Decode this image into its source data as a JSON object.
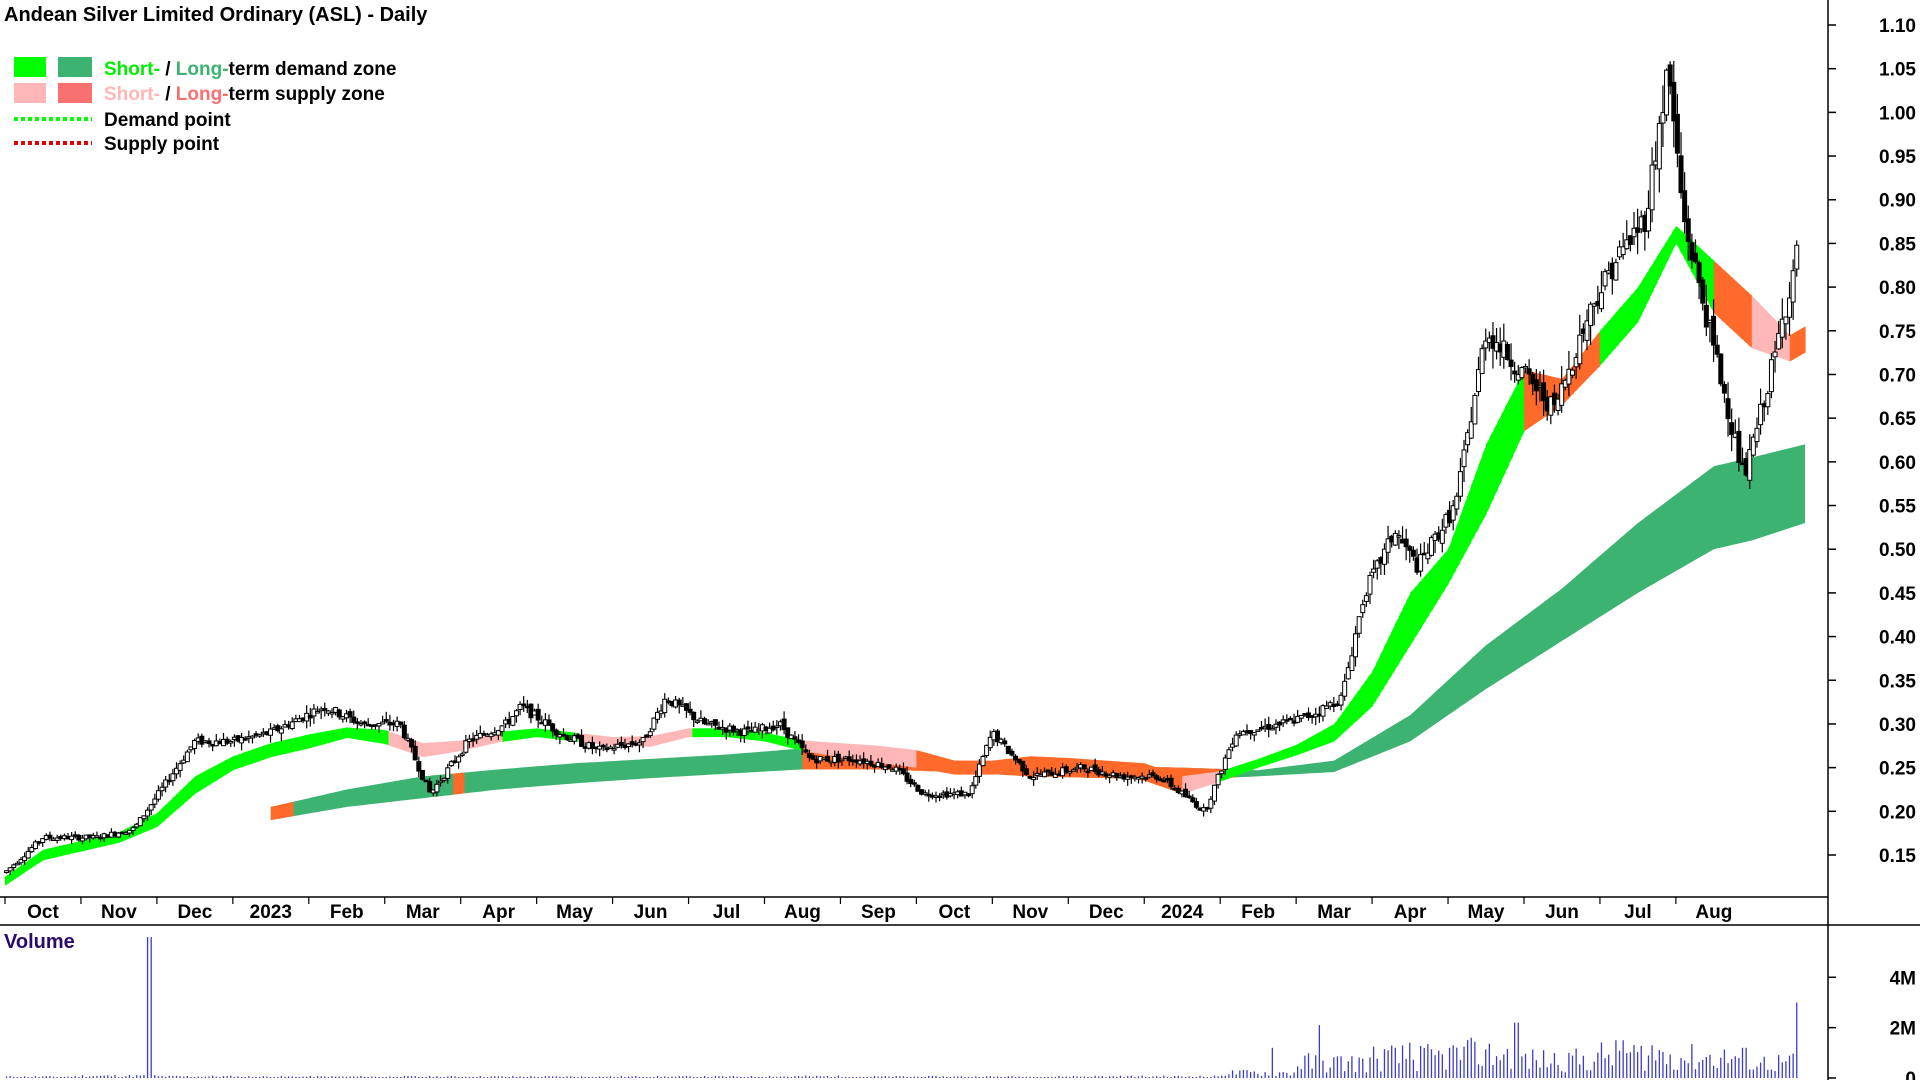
{
  "chart_data": [
    {
      "type": "candlestick",
      "title": "Andean Silver Limited Ordinary (ASL) - Daily",
      "legend": {
        "placement": "top-left",
        "demand_zone": {
          "short": "Short-",
          "sep": " / ",
          "long": "Long-",
          "rest": "term demand zone"
        },
        "supply_zone": {
          "short": "Short-",
          "sep": " / ",
          "long": "Long-",
          "rest": "term supply zone"
        },
        "demand_point": "Demand point",
        "supply_point": "Supply point"
      },
      "colors": {
        "short_demand": "#00ff00",
        "long_demand": "#3cb371",
        "short_supply": "#ffb6b6",
        "long_supply": "#f87070",
        "zone_overlap": "#ff6a2a",
        "demand_point": "#00ff00",
        "supply_point": "#e00000",
        "volume": "#3c3cc8",
        "candle": "#000000"
      },
      "x_labels": [
        "Oct",
        "Nov",
        "Dec",
        "2023",
        "Feb",
        "Mar",
        "Apr",
        "May",
        "Jun",
        "Jul",
        "Aug",
        "Sep",
        "Oct",
        "Nov",
        "Dec",
        "2024",
        "Feb",
        "Mar",
        "Apr",
        "May",
        "Jun",
        "Jul",
        "Aug"
      ],
      "x_label_month_pos": [
        0.5,
        1.5,
        2.5,
        3.5,
        4.5,
        5.5,
        6.5,
        7.5,
        8.5,
        9.5,
        10.5,
        11.5,
        12.5,
        13.5,
        14.5,
        15.5,
        16.5,
        17.5,
        18.5,
        19.5,
        20.5,
        21.5,
        22.5
      ],
      "x_range_months": [
        0,
        23.7
      ],
      "y_axis": {
        "scale": "linear",
        "ylim": [
          0.1,
          1.125
        ],
        "side": "right",
        "ticks": [
          "1.10",
          "1.05",
          "1.00",
          "0.95",
          "0.90",
          "0.85",
          "0.80",
          "0.75",
          "0.70",
          "0.65",
          "0.60",
          "0.55",
          "0.50",
          "0.45",
          "0.40",
          "0.35",
          "0.30",
          "0.25",
          "0.20",
          "0.15"
        ]
      },
      "price_path": [
        [
          0,
          0.13
        ],
        [
          0.5,
          0.17
        ],
        [
          1.2,
          0.17
        ],
        [
          1.7,
          0.18
        ],
        [
          2.1,
          0.23
        ],
        [
          2.5,
          0.28
        ],
        [
          3,
          0.28
        ],
        [
          3.5,
          0.29
        ],
        [
          4.2,
          0.32
        ],
        [
          4.7,
          0.3
        ],
        [
          5.2,
          0.3
        ],
        [
          5.6,
          0.22
        ],
        [
          6.1,
          0.28
        ],
        [
          6.6,
          0.3
        ],
        [
          6.8,
          0.32
        ],
        [
          7.3,
          0.29
        ],
        [
          7.8,
          0.27
        ],
        [
          8.4,
          0.28
        ],
        [
          8.7,
          0.33
        ],
        [
          9.2,
          0.3
        ],
        [
          9.8,
          0.29
        ],
        [
          10.2,
          0.3
        ],
        [
          10.6,
          0.26
        ],
        [
          11.2,
          0.26
        ],
        [
          11.7,
          0.25
        ],
        [
          12.1,
          0.22
        ],
        [
          12.7,
          0.22
        ],
        [
          13,
          0.29
        ],
        [
          13.5,
          0.24
        ],
        [
          14.2,
          0.25
        ],
        [
          14.7,
          0.24
        ],
        [
          15.2,
          0.24
        ],
        [
          15.8,
          0.2
        ],
        [
          16.2,
          0.29
        ],
        [
          16.8,
          0.3
        ],
        [
          17.2,
          0.31
        ],
        [
          17.6,
          0.33
        ],
        [
          17.9,
          0.45
        ],
        [
          18.3,
          0.52
        ],
        [
          18.6,
          0.48
        ],
        [
          19.1,
          0.55
        ],
        [
          19.5,
          0.75
        ],
        [
          20,
          0.7
        ],
        [
          20.4,
          0.66
        ],
        [
          20.9,
          0.78
        ],
        [
          21.2,
          0.83
        ],
        [
          21.6,
          0.88
        ],
        [
          21.9,
          1.05
        ],
        [
          22.1,
          0.88
        ],
        [
          22.5,
          0.73
        ],
        [
          22.9,
          0.58
        ],
        [
          23.3,
          0.72
        ],
        [
          23.6,
          0.84
        ]
      ],
      "short_term_zone": {
        "months": [
          0,
          0.5,
          1,
          1.5,
          2,
          2.5,
          3,
          3.5,
          4,
          4.5,
          5,
          5.5,
          6,
          6.5,
          7,
          7.5,
          8,
          8.5,
          9,
          9.5,
          10,
          10.5,
          11,
          11.5,
          12,
          12.5,
          13,
          13.5,
          14,
          14.5,
          15,
          15.5,
          16,
          16.5,
          17,
          17.5,
          18,
          18.5,
          19,
          19.5,
          20,
          20.5,
          21,
          21.5,
          22,
          22.5,
          23,
          23.5,
          23.7
        ],
        "center": [
          0.12,
          0.15,
          0.16,
          0.17,
          0.19,
          0.23,
          0.255,
          0.27,
          0.28,
          0.29,
          0.285,
          0.27,
          0.275,
          0.285,
          0.29,
          0.285,
          0.28,
          0.28,
          0.29,
          0.29,
          0.285,
          0.275,
          0.27,
          0.265,
          0.26,
          0.25,
          0.25,
          0.255,
          0.255,
          0.25,
          0.245,
          0.23,
          0.24,
          0.255,
          0.27,
          0.29,
          0.34,
          0.42,
          0.48,
          0.58,
          0.67,
          0.68,
          0.73,
          0.78,
          0.86,
          0.8,
          0.76,
          0.73,
          0.74
        ],
        "half_width": [
          0.005,
          0.006,
          0.006,
          0.006,
          0.008,
          0.01,
          0.008,
          0.008,
          0.008,
          0.006,
          0.008,
          0.008,
          0.006,
          0.006,
          0.005,
          0.005,
          0.005,
          0.006,
          0.005,
          0.005,
          0.005,
          0.006,
          0.008,
          0.01,
          0.01,
          0.008,
          0.008,
          0.008,
          0.006,
          0.008,
          0.01,
          0.01,
          0.006,
          0.005,
          0.006,
          0.01,
          0.02,
          0.03,
          0.02,
          0.04,
          0.035,
          0.015,
          0.02,
          0.02,
          0.01,
          0.03,
          0.03,
          0.015,
          0.015
        ],
        "state": [
          "d",
          "d",
          "d",
          "d",
          "d",
          "d",
          "d",
          "d",
          "d",
          "d",
          "s",
          "s",
          "s",
          "d",
          "d",
          "s",
          "s",
          "s",
          "d",
          "d",
          "d",
          "s",
          "s",
          "s",
          "o",
          "o",
          "o",
          "o",
          "o",
          "o",
          "o",
          "s",
          "d",
          "d",
          "d",
          "d",
          "d",
          "d",
          "d",
          "d",
          "o",
          "o",
          "d",
          "d",
          "d",
          "o",
          "s",
          "o",
          "o"
        ]
      },
      "long_term_zone": {
        "months": [
          3.5,
          4.5,
          5.5,
          6.5,
          7.5,
          8.5,
          9.5,
          10.5,
          11.5,
          12.5,
          13.5,
          14.5,
          15.5,
          16.5,
          17.5,
          18.5,
          19.5,
          20.5,
          21.5,
          22.5,
          23.0,
          23.7
        ],
        "top": [
          0.205,
          0.225,
          0.24,
          0.248,
          0.255,
          0.26,
          0.265,
          0.272,
          0.265,
          0.258,
          0.255,
          0.252,
          0.25,
          0.247,
          0.258,
          0.31,
          0.39,
          0.455,
          0.53,
          0.595,
          0.605,
          0.62
        ],
        "bottom": [
          0.19,
          0.205,
          0.215,
          0.225,
          0.232,
          0.238,
          0.243,
          0.248,
          0.248,
          0.245,
          0.24,
          0.238,
          0.236,
          0.24,
          0.245,
          0.28,
          0.34,
          0.395,
          0.45,
          0.5,
          0.51,
          0.53
        ],
        "state": [
          "o",
          "d",
          "d",
          "d",
          "d",
          "d",
          "d",
          "d",
          "d",
          "o",
          "o",
          "o",
          "d",
          "d",
          "d",
          "d",
          "d",
          "d",
          "d",
          "d",
          "d",
          "d"
        ],
        "overlap_months": [
          [
            3.5,
            3.8
          ],
          [
            5.9,
            6.05
          ],
          [
            10.5,
            12.8
          ],
          [
            13.1,
            16.2
          ]
        ]
      },
      "grid": false
    },
    {
      "type": "bar",
      "title": "Volume",
      "y_axis": {
        "ticks": [
          "4M",
          "2M",
          "0"
        ],
        "ylim": [
          0,
          5.6
        ]
      },
      "values_millions_by_month": [
        0.05,
        0.08,
        0.06,
        0.05,
        0.05,
        0.05,
        0.05,
        0.05,
        0.05,
        0.05,
        0.06,
        0.05,
        0.05,
        0.05,
        0.06,
        0.06,
        0.2,
        0.6,
        0.8,
        0.9,
        0.7,
        0.9,
        0.8,
        0.6
      ],
      "spikes": [
        [
          1.9,
          5.6
        ],
        [
          16.7,
          1.2
        ],
        [
          17.3,
          2.1
        ],
        [
          18.2,
          1.1
        ],
        [
          18.5,
          1.4
        ],
        [
          19.3,
          1.6
        ],
        [
          19.9,
          2.2
        ],
        [
          20.6,
          1.0
        ],
        [
          21.3,
          1.5
        ],
        [
          21.7,
          1.3
        ],
        [
          22.9,
          1.2
        ],
        [
          23.6,
          3.0
        ]
      ]
    }
  ]
}
